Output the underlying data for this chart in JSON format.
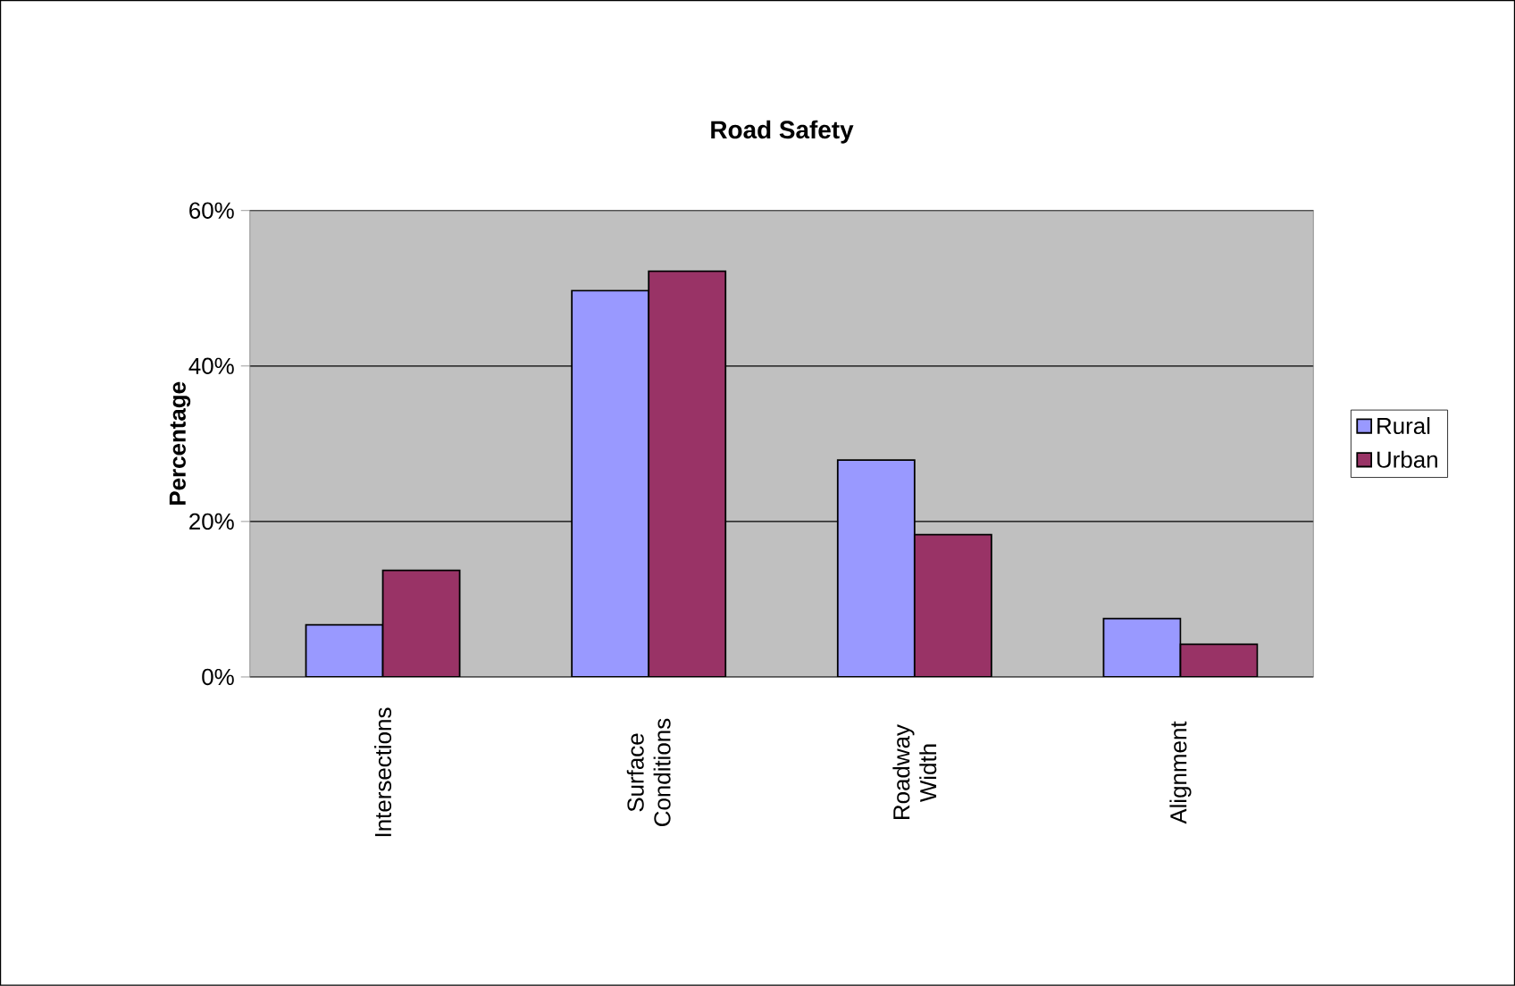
{
  "chart_data": {
    "type": "bar",
    "title": "Road Safety",
    "ylabel": "Percentage",
    "categories": [
      "Intersections",
      "Surface Conditions",
      "Roadway Width",
      "Alignment"
    ],
    "series": [
      {
        "name": "Rural",
        "color": "#9999ff",
        "values": [
          6.7,
          49.7,
          27.9,
          7.5
        ]
      },
      {
        "name": "Urban",
        "color": "#993366",
        "values": [
          13.7,
          52.2,
          18.3,
          4.2
        ]
      }
    ],
    "ylim": [
      0,
      60
    ],
    "yticks": [
      {
        "value": 0,
        "label": "0%"
      },
      {
        "value": 20,
        "label": "20%"
      },
      {
        "value": 40,
        "label": "40%"
      },
      {
        "value": 60,
        "label": "60%"
      }
    ],
    "grid": "y",
    "legend": "right"
  }
}
